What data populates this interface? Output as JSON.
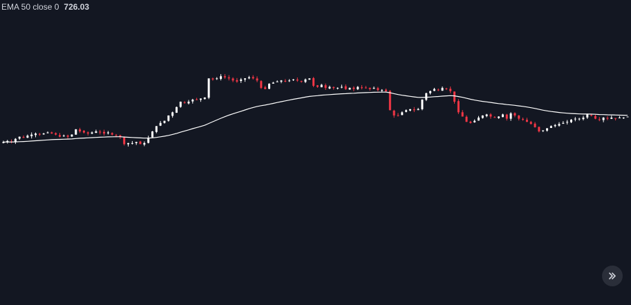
{
  "legend": {
    "study_label": "EMA 50 close 0",
    "value": "726.03"
  },
  "scroll_button": {
    "icon": "double-chevron-right-icon"
  },
  "colors": {
    "background": "#131722",
    "up": "#ffffff",
    "down": "#f23645",
    "ema": "#ffffff"
  },
  "chart_data": {
    "type": "candlestick",
    "indicator": {
      "name": "EMA",
      "period": 50,
      "source": "close"
    },
    "y_range_estimated": [
      650,
      800
    ],
    "candles_close_estimated": [
      730,
      731,
      730,
      733,
      735,
      734,
      736,
      737,
      738,
      737,
      738,
      739,
      738,
      737,
      735,
      736,
      735,
      737,
      742,
      740,
      739,
      738,
      739,
      740,
      739,
      738,
      739,
      737,
      736,
      735,
      728,
      729,
      729,
      730,
      728,
      729,
      734,
      740,
      745,
      748,
      750,
      755,
      758,
      763,
      768,
      767,
      768,
      770,
      770,
      771,
      772,
      790,
      789,
      790,
      792,
      791,
      790,
      788,
      787,
      789,
      790,
      791,
      790,
      788,
      781,
      780,
      785,
      786,
      787,
      788,
      787,
      788,
      789,
      788,
      787,
      789,
      790,
      783,
      782,
      784,
      781,
      782,
      781,
      781,
      782,
      780,
      781,
      780,
      782,
      781,
      781,
      780,
      781,
      779,
      779,
      778,
      760,
      755,
      755,
      758,
      760,
      761,
      760,
      761,
      770,
      776,
      778,
      780,
      779,
      781,
      780,
      778,
      768,
      758,
      754,
      749,
      748,
      750,
      753,
      755,
      756,
      754,
      753,
      754,
      756,
      752,
      757,
      755,
      752,
      751,
      749,
      747,
      744,
      740,
      741,
      743,
      745,
      746,
      747,
      748,
      749,
      751,
      752,
      752,
      753,
      756,
      755,
      752,
      751,
      753,
      752,
      753,
      752,
      753,
      753,
      754
    ]
  }
}
